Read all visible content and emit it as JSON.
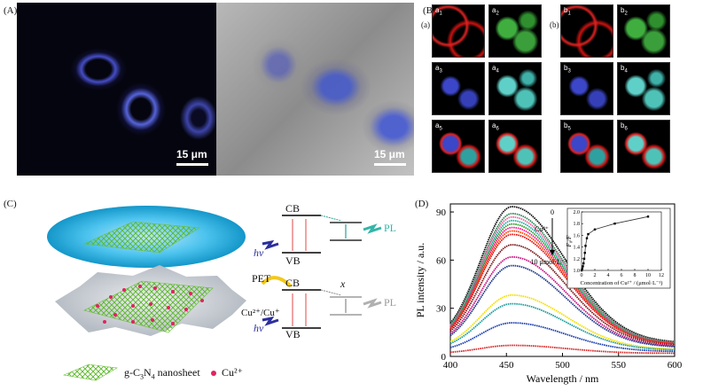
{
  "panels": {
    "A": {
      "label": "(A)",
      "scalebar_left": "15 μm",
      "scalebar_right": "15 μm"
    },
    "B": {
      "label": "(B)",
      "group_a_label": "(a)",
      "group_b_label": "(b)",
      "tiles_a": [
        {
          "id": "a1",
          "letter": "a",
          "sub": "1",
          "channel": "red-ring"
        },
        {
          "id": "a2",
          "letter": "a",
          "sub": "2",
          "channel": "green"
        },
        {
          "id": "a3",
          "letter": "a",
          "sub": "3",
          "channel": "blue"
        },
        {
          "id": "a4",
          "letter": "a",
          "sub": "4",
          "channel": "cyan"
        },
        {
          "id": "a5",
          "letter": "a",
          "sub": "5",
          "channel": "merge"
        },
        {
          "id": "a6",
          "letter": "a",
          "sub": "6",
          "channel": "merge-cyan"
        }
      ],
      "tiles_b": [
        {
          "id": "b1",
          "letter": "b",
          "sub": "1",
          "channel": "red-ring"
        },
        {
          "id": "b2",
          "letter": "b",
          "sub": "2",
          "channel": "green"
        },
        {
          "id": "b3",
          "letter": "b",
          "sub": "3",
          "channel": "blue"
        },
        {
          "id": "b4",
          "letter": "b",
          "sub": "4",
          "channel": "cyan"
        },
        {
          "id": "b5",
          "letter": "b",
          "sub": "5",
          "channel": "merge"
        },
        {
          "id": "b6",
          "letter": "b",
          "sub": "6",
          "channel": "merge-cyan"
        }
      ]
    },
    "C": {
      "label": "(C)",
      "cb": "CB",
      "vb": "VB",
      "pl": "PL",
      "hv": "hν",
      "pet": "PET",
      "cu_pair": "Cu²⁺/Cu⁺",
      "x_mark": "x",
      "legend_nanosheet_prefix": "g-C",
      "legend_nanosheet_sub1": "3",
      "legend_nanosheet_mid": "N",
      "legend_nanosheet_sub2": "4",
      "legend_nanosheet_suffix": " nanosheet",
      "legend_cu": "Cu²⁺"
    },
    "D": {
      "label": "(D)",
      "arrow_top": "0",
      "arrow_cu": "Cu²⁺",
      "arrow_bottom": "10 μmol·L⁻¹"
    }
  },
  "colors": {
    "cb_arrow": "#2aa198",
    "pl_cyan": "#34b5a8",
    "pl_grey": "#9a9a9a",
    "pet_yellow": "#f2c81b",
    "hv_blue": "#2b2f9c",
    "cu_dot": "#e0245e",
    "ellipse_cyan": "#27b6e6"
  },
  "chart_data": [
    {
      "type": "line",
      "title": "",
      "xlabel": "Wavelength / nm",
      "ylabel": "PL intensity / a.u.",
      "xlim": [
        400,
        600
      ],
      "ylim": [
        0,
        95
      ],
      "xticks": [
        400,
        450,
        500,
        550,
        600
      ],
      "yticks": [
        0,
        30,
        60,
        90
      ],
      "peak_x": 455,
      "series": [
        {
          "color": "#111111",
          "peak": 85
        },
        {
          "color": "#2e8b57",
          "peak": 81
        },
        {
          "color": "#ff5fa2",
          "peak": 79
        },
        {
          "color": "#20b2aa",
          "peak": 77
        },
        {
          "color": "#2ca02c",
          "peak": 75
        },
        {
          "color": "#ff1493",
          "peak": 73
        },
        {
          "color": "#ff4500",
          "peak": 71
        },
        {
          "color": "#dc1414",
          "peak": 69
        },
        {
          "color": "#7b1a1a",
          "peak": 63
        },
        {
          "color": "#c71585",
          "peak": 56
        },
        {
          "color": "#1e3a8a",
          "peak": 51
        },
        {
          "color": "#f4e000",
          "peak": 34
        },
        {
          "color": "#1f9e9e",
          "peak": 29
        },
        {
          "color": "#1c3fb0",
          "peak": 18
        },
        {
          "color": "#d62728",
          "peak": 5
        }
      ]
    },
    {
      "type": "line",
      "title": "",
      "xlabel": "Concentration of Cu²⁺ / (μmol·L⁻¹)",
      "ylabel": "F₀/F",
      "xlim": [
        0,
        12
      ],
      "ylim": [
        1.0,
        2.0
      ],
      "xticks": [
        0,
        2,
        4,
        6,
        8,
        10,
        12
      ],
      "yticks": [
        1.0,
        1.2,
        1.4,
        1.6,
        1.8,
        2.0
      ],
      "x": [
        0,
        0.1,
        0.2,
        0.3,
        0.4,
        0.5,
        0.6,
        0.8,
        1.0,
        2.0,
        5.0,
        10.0
      ],
      "y": [
        1.0,
        1.03,
        1.07,
        1.12,
        1.2,
        1.3,
        1.42,
        1.55,
        1.62,
        1.7,
        1.8,
        1.92
      ]
    }
  ]
}
